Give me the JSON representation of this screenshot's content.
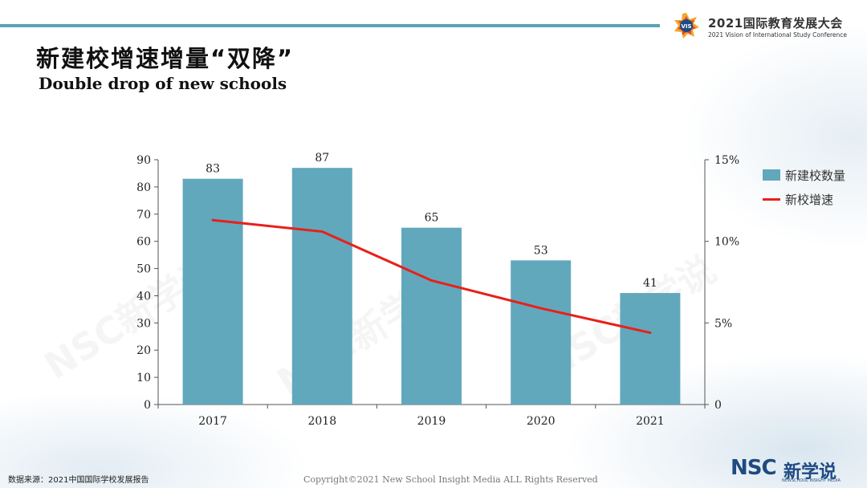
{
  "header": {
    "conference_title": "2021国际教育发展大会",
    "conference_subtitle": "2021 Vision of International Study Conference",
    "logo_text": "VIS"
  },
  "slide": {
    "title_cn": "新建校增速增量“双降”",
    "title_en": "Double drop of new schools"
  },
  "chart_data": {
    "type": "bar",
    "categories": [
      "2017",
      "2018",
      "2019",
      "2020",
      "2021"
    ],
    "series": [
      {
        "name": "新建校数量",
        "type": "bar",
        "axis": "left",
        "values": [
          83,
          87,
          65,
          53,
          41
        ],
        "color": "#61a8bd"
      },
      {
        "name": "新校增速",
        "type": "line",
        "axis": "right",
        "values": [
          11.3,
          10.6,
          7.6,
          5.9,
          4.4
        ],
        "color": "#e8201a"
      }
    ],
    "y_left": {
      "min": 0,
      "max": 90,
      "ticks": [
        "0",
        "10",
        "20",
        "30",
        "40",
        "50",
        "60",
        "70",
        "80",
        "90"
      ]
    },
    "y_right": {
      "min": 0,
      "max": 15,
      "ticks": [
        "0",
        "5%",
        "10%",
        "15%"
      ]
    },
    "data_labels": [
      "83",
      "87",
      "65",
      "53",
      "41"
    ],
    "legend_position": "right",
    "grid": false
  },
  "footer": {
    "source": "数据来源：2021中国国际学校发展报告",
    "copyright": "Copyright©2021 New School Insight Media ALL Rights Reserved",
    "brand_main": "NSC",
    "brand_cn": "新学说",
    "brand_sub": "NEWSCHOOL INSIGHT MEDIA"
  },
  "watermark": "NSC新学说"
}
